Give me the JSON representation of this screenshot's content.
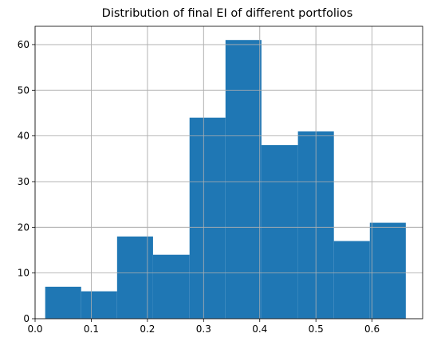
{
  "chart_data": {
    "type": "bar",
    "title": "Distribution of final EI of different portfolios",
    "xlabel": "",
    "ylabel": "",
    "xlim": [
      0.0,
      0.69
    ],
    "ylim": [
      0,
      64
    ],
    "grid": true,
    "bar_color": "#1f77b4",
    "bins": [
      {
        "x0": 0.018,
        "x1": 0.082,
        "value": 7
      },
      {
        "x0": 0.082,
        "x1": 0.146,
        "value": 6
      },
      {
        "x0": 0.146,
        "x1": 0.21,
        "value": 18
      },
      {
        "x0": 0.21,
        "x1": 0.275,
        "value": 14
      },
      {
        "x0": 0.275,
        "x1": 0.339,
        "value": 44
      },
      {
        "x0": 0.339,
        "x1": 0.403,
        "value": 61
      },
      {
        "x0": 0.403,
        "x1": 0.468,
        "value": 38
      },
      {
        "x0": 0.468,
        "x1": 0.532,
        "value": 41
      },
      {
        "x0": 0.532,
        "x1": 0.596,
        "value": 17
      },
      {
        "x0": 0.596,
        "x1": 0.66,
        "value": 21
      }
    ],
    "x_ticks": [
      0.0,
      0.1,
      0.2,
      0.3,
      0.4,
      0.5,
      0.6
    ],
    "x_tick_labels": [
      "0.0",
      "0.1",
      "0.2",
      "0.3",
      "0.4",
      "0.5",
      "0.6"
    ],
    "y_ticks": [
      0,
      10,
      20,
      30,
      40,
      50,
      60
    ],
    "y_tick_labels": [
      "0",
      "10",
      "20",
      "30",
      "40",
      "50",
      "60"
    ]
  }
}
